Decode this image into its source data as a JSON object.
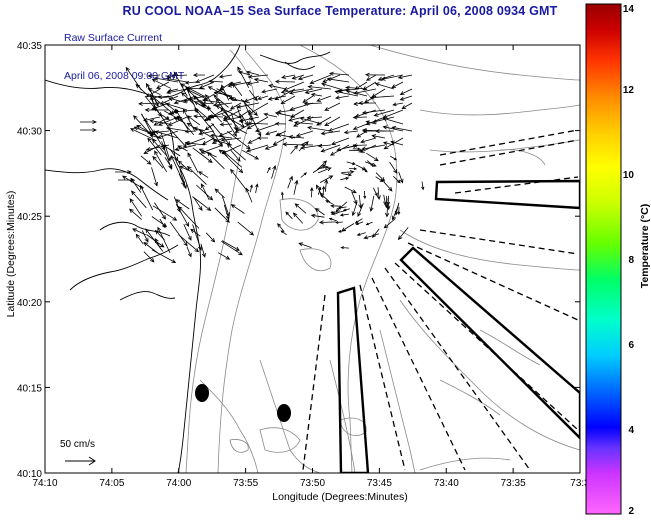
{
  "title": "RU COOL  NOAA–15  Sea Surface Temperature:  April 06, 2008 0934 GMT",
  "legend": {
    "line1": "Raw Surface Current",
    "line2": "April 06, 2008 09:00 GMT"
  },
  "axes": {
    "xlabel": "Longitude (Degrees:Minutes)",
    "ylabel": "Latitude (Degrees:Minutes)",
    "x_ticks": [
      "74:10",
      "74:05",
      "74:00",
      "73:55",
      "73:50",
      "73:45",
      "73:40",
      "73:35",
      "73:3"
    ],
    "y_ticks": [
      "40:35",
      "40:30",
      "40:25",
      "40:20",
      "40:15",
      "40:10"
    ]
  },
  "colorbar": {
    "label": "Temperature (°C)",
    "ticks": [
      "14",
      "12",
      "10",
      "8",
      "6",
      "4",
      "2"
    ],
    "min": 2,
    "max": 14,
    "colors": [
      "#ff66ff",
      "#cc33ff",
      "#6633ff",
      "#0000ff",
      "#0066ff",
      "#00ccff",
      "#00ffcc",
      "#00ff66",
      "#66ff00",
      "#ccff00",
      "#ffff00",
      "#ffcc00",
      "#ff8800",
      "#ff3300",
      "#cc0000",
      "#990000"
    ]
  },
  "scale": {
    "label": "50 cm/s"
  }
}
